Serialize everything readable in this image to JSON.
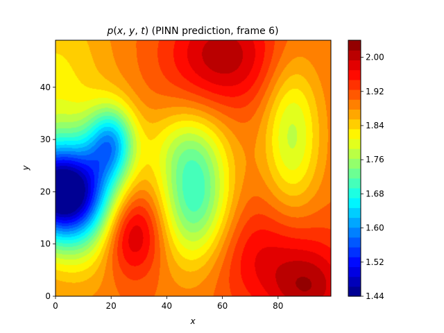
{
  "chart_data": {
    "type": "heatmap",
    "style": "filled-contour",
    "title": "p(x, y, t) (PINN prediction, frame 6)",
    "xlabel": "x",
    "ylabel": "y",
    "xlim": [
      0,
      99
    ],
    "ylim": [
      0,
      49
    ],
    "x_ticks": [
      0,
      20,
      40,
      60,
      80
    ],
    "y_ticks": [
      0,
      10,
      20,
      30,
      40
    ],
    "colorbar": {
      "range": [
        1.44,
        2.04
      ],
      "levels": 26,
      "ticks": [
        "1.44",
        "1.52",
        "1.60",
        "1.68",
        "1.76",
        "1.84",
        "1.92",
        "2.00"
      ],
      "colormap": "jet"
    },
    "background": 1.9,
    "features": [
      {
        "kind": "low",
        "x": 2,
        "y": 20,
        "sx": 12,
        "sy": 6.5,
        "amp": -0.44
      },
      {
        "kind": "low",
        "x": 20,
        "y": 29.5,
        "sx": 6,
        "sy": 5,
        "amp": -0.23
      },
      {
        "kind": "low",
        "x": 0,
        "y": 36,
        "sx": 14,
        "sy": 18,
        "amp": -0.08
      },
      {
        "kind": "low",
        "x": 12,
        "y": 14,
        "sx": 10,
        "sy": 8,
        "amp": -0.07
      },
      {
        "kind": "low",
        "x": 50,
        "y": 19,
        "sx": 9,
        "sy": 9,
        "amp": -0.2
      },
      {
        "kind": "low",
        "x": 85,
        "y": 31,
        "sx": 7,
        "sy": 10,
        "amp": -0.12
      },
      {
        "kind": "low",
        "x": 45,
        "y": 29,
        "sx": 10,
        "sy": 5,
        "amp": -0.05
      },
      {
        "kind": "high",
        "x": 27,
        "y": 12.5,
        "sx": 8,
        "sy": 6,
        "amp": 0.13
      },
      {
        "kind": "high",
        "x": 60,
        "y": 46,
        "sx": 14,
        "sy": 7,
        "amp": 0.11
      },
      {
        "kind": "high",
        "x": 91,
        "y": 1,
        "sx": 10,
        "sy": 5,
        "amp": 0.09
      },
      {
        "kind": "high",
        "x": 88,
        "y": 8,
        "sx": 14,
        "sy": 6,
        "amp": 0.04
      },
      {
        "kind": "high",
        "x": 70,
        "y": 8,
        "sx": 12,
        "sy": 8,
        "amp": 0.05
      }
    ]
  }
}
